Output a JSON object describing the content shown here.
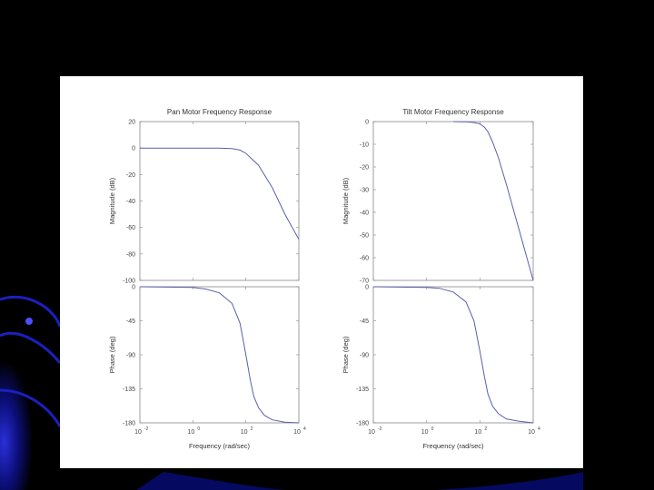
{
  "chart_data": [
    {
      "type": "line",
      "title": "Pan Motor Frequency Response",
      "ylabel": "Magnitude (dB)",
      "xscale": "log",
      "xlim": [
        0.01,
        10000
      ],
      "ylim": [
        -100,
        20
      ],
      "yticks": [
        "20",
        "0",
        "-20",
        "-40",
        "-60",
        "-80",
        "-100"
      ],
      "series": [
        {
          "x": [
            0.01,
            1,
            10,
            30,
            60,
            100,
            300,
            1000,
            3000,
            10000
          ],
          "values": [
            0,
            0,
            0,
            -0.4,
            -1.5,
            -4,
            -13,
            -30,
            -50,
            -69
          ]
        }
      ]
    },
    {
      "type": "line",
      "title": "Tilt Motor Frequency Response",
      "ylabel": "Magnitude (dB)",
      "xscale": "log",
      "xlim": [
        0.01,
        10000
      ],
      "ylim": [
        -70,
        0
      ],
      "yticks": [
        "0",
        "-10",
        "-20",
        "-30",
        "-40",
        "-50",
        "-60",
        "-70"
      ],
      "series": [
        {
          "x": [
            10,
            30,
            60,
            100,
            150,
            200,
            300,
            500,
            1000,
            3000,
            10000
          ],
          "values": [
            0,
            -0.1,
            -0.4,
            -1,
            -2.5,
            -4.5,
            -9,
            -16,
            -28,
            -48,
            -70
          ]
        }
      ]
    },
    {
      "type": "line",
      "ylabel": "Phase (deg)",
      "xlabel": "Frequency  (rad/sec)",
      "xscale": "log",
      "xlim": [
        0.01,
        10000
      ],
      "ylim": [
        -180,
        0
      ],
      "yticks": [
        "0",
        "-45",
        "-90",
        "-135",
        "-180"
      ],
      "series": [
        {
          "x": [
            0.01,
            1,
            3,
            10,
            30,
            60,
            100,
            150,
            200,
            300,
            500,
            1000,
            3000,
            10000
          ],
          "values": [
            0,
            -1,
            -3,
            -8,
            -22,
            -48,
            -90,
            -125,
            -145,
            -160,
            -170,
            -176,
            -179,
            -180
          ]
        }
      ]
    },
    {
      "type": "line",
      "ylabel": "Phase (deg)",
      "xlabel": "Frequency  (rad/sec)",
      "xscale": "log",
      "xlim": [
        0.01,
        10000
      ],
      "ylim": [
        -180,
        0
      ],
      "yticks": [
        "0",
        "-45",
        "-90",
        "-135",
        "-180"
      ],
      "series": [
        {
          "x": [
            0.01,
            1,
            3,
            10,
            30,
            60,
            100,
            150,
            200,
            300,
            500,
            1000,
            3000,
            10000
          ],
          "values": [
            0,
            -1,
            -2,
            -7,
            -20,
            -45,
            -85,
            -120,
            -142,
            -158,
            -168,
            -175,
            -178,
            -180
          ]
        }
      ]
    }
  ],
  "xticks": [
    {
      "base": "10",
      "exp": "-2",
      "value": 0.01
    },
    {
      "base": "10",
      "exp": "0",
      "value": 1
    },
    {
      "base": "10",
      "exp": "2",
      "value": 100
    },
    {
      "base": "10",
      "exp": "4",
      "value": 10000
    }
  ],
  "colors": {
    "line": "#5a5fae",
    "background": "#000000",
    "figure": "#ffffff",
    "accent": "#1b1fa8"
  }
}
